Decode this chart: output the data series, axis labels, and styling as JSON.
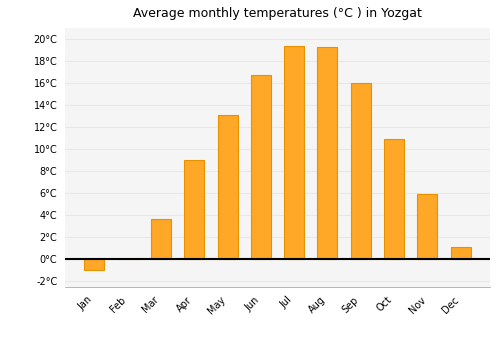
{
  "title": "Average monthly temperatures (°C ) in Yozgat",
  "months": [
    "Jan",
    "Feb",
    "Mar",
    "Apr",
    "May",
    "Jun",
    "Jul",
    "Aug",
    "Sep",
    "Oct",
    "Nov",
    "Dec"
  ],
  "temperatures": [
    -1.0,
    0.0,
    3.7,
    9.0,
    13.1,
    16.7,
    19.4,
    19.3,
    16.0,
    10.9,
    5.9,
    1.1
  ],
  "bar_color": "#FFA726",
  "bar_edge_color": "#E59400",
  "background_color": "#ffffff",
  "plot_background": "#f5f5f5",
  "ylim": [
    -2.5,
    21
  ],
  "yticks": [
    -2,
    0,
    2,
    4,
    6,
    8,
    10,
    12,
    14,
    16,
    18,
    20
  ],
  "ytick_labels": [
    "-2°C",
    "0°C",
    "2°C",
    "4°C",
    "6°C",
    "8°C",
    "10°C",
    "12°C",
    "14°C",
    "16°C",
    "18°C",
    "20°C"
  ],
  "title_fontsize": 9,
  "tick_fontsize": 7,
  "grid_color": "#e8e8e8",
  "zero_line_color": "#000000",
  "spine_color": "#999999"
}
